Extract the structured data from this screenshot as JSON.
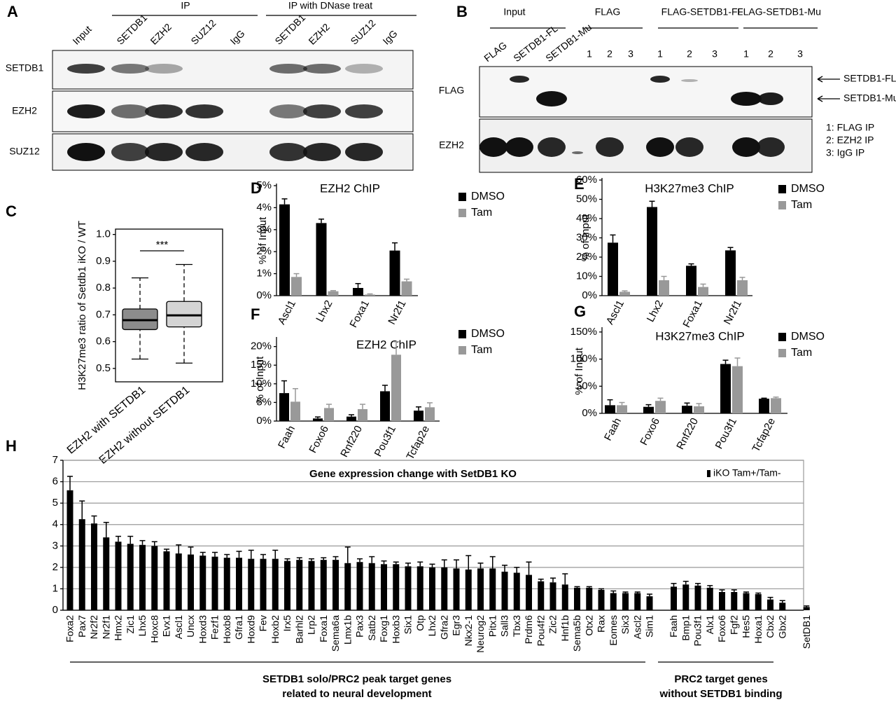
{
  "panel_labels": [
    "A",
    "B",
    "C",
    "D",
    "E",
    "F",
    "G",
    "H"
  ],
  "blot_a": {
    "groups": [
      "IP",
      "IP with DNase treat"
    ],
    "lanes": [
      "Input",
      "SETDB1",
      "EZH2",
      "SUZ12",
      "IgG",
      "SETDB1",
      "EZH2",
      "SUZ12",
      "IgG"
    ],
    "rows": [
      "SETDB1",
      "EZH2",
      "SUZ12"
    ]
  },
  "blot_b": {
    "groups": [
      "Input",
      "FLAG",
      "FLAG-SETDB1-FL",
      "FLAG-SETDB1-Mu"
    ],
    "lanes": [
      "FLAG",
      "SETDB1-FL",
      "SETDB1-Mu",
      "1",
      "2",
      "3",
      "1",
      "2",
      "3",
      "1",
      "2",
      "3"
    ],
    "rows": [
      "FLAG",
      "EZH2"
    ],
    "band_labels": [
      "SETDB1-FL",
      "SETDB1-Mu"
    ],
    "key": [
      "1: FLAG IP",
      "2: EZH2 IP",
      "3: IgG IP"
    ]
  },
  "chart_data": [
    {
      "type": "box",
      "y_label": "H3K27me3 ratio of Setdb1 iKO / WT",
      "categories": [
        "EZH2 with SETDB1",
        "EZH2 without SETDB1"
      ],
      "boxes": [
        {
          "color": "#8c8c8c",
          "low": 0.535,
          "q1": 0.645,
          "median": 0.68,
          "q3": 0.722,
          "high": 0.838
        },
        {
          "color": "#d4d4d4",
          "low": 0.52,
          "q1": 0.655,
          "median": 0.698,
          "q3": 0.75,
          "high": 0.888
        }
      ],
      "annotation": "***",
      "ylim": [
        0.45,
        1.02
      ],
      "yticks": [
        0.5,
        0.6,
        0.7,
        0.8,
        0.9,
        {
          "value": 1,
          "label": "1.0"
        }
      ]
    },
    {
      "type": "bar",
      "title": "EZH2 ChIP",
      "y_label": "% of Input",
      "categories": [
        "Ascl1",
        "Lhx2",
        "Foxa1",
        "Nr2f1"
      ],
      "series": [
        {
          "name": "DMSO",
          "color": "#000000",
          "values": [
            4.15,
            3.3,
            0.35,
            2.05
          ],
          "errors": [
            0.25,
            0.18,
            0.2,
            0.35
          ]
        },
        {
          "name": "Tam",
          "color": "#999999",
          "values": [
            0.85,
            0.2,
            0.05,
            0.65
          ],
          "errors": [
            0.15,
            0.03,
            0.03,
            0.1
          ]
        }
      ],
      "ylim": [
        0,
        5
      ],
      "yticks": [
        {
          "value": 0,
          "label": "0%"
        },
        {
          "value": 1,
          "label": "1%"
        },
        {
          "value": 2,
          "label": "2%"
        },
        {
          "value": 3,
          "label": "3%"
        },
        {
          "value": 4,
          "label": "4%"
        },
        {
          "value": 5,
          "label": "5%"
        }
      ]
    },
    {
      "type": "bar",
      "title": "H3K27me3 ChIP",
      "y_label": "% of Input",
      "categories": [
        "Ascl1",
        "Lhx2",
        "Foxa1",
        "Nr2f1"
      ],
      "series": [
        {
          "name": "DMSO",
          "color": "#000000",
          "values": [
            27.5,
            46,
            15.5,
            23.5
          ],
          "errors": [
            4,
            3,
            1,
            1.5
          ]
        },
        {
          "name": "Tam",
          "color": "#999999",
          "values": [
            2,
            8,
            4.5,
            8
          ],
          "errors": [
            0.5,
            2,
            1.5,
            1.5
          ]
        }
      ],
      "ylim": [
        0,
        60
      ],
      "yticks": [
        {
          "value": 0,
          "label": "0%"
        },
        {
          "value": 10,
          "label": "10%"
        },
        {
          "value": 20,
          "label": "20%"
        },
        {
          "value": 30,
          "label": "30%"
        },
        {
          "value": 40,
          "label": "40%"
        },
        {
          "value": 50,
          "label": "50%"
        },
        {
          "value": 60,
          "label": "60%"
        }
      ]
    },
    {
      "type": "bar",
      "title": "EZH2 ChIP",
      "y_label": "% of Input",
      "categories": [
        "Faah",
        "Foxo6",
        "Rnf220",
        "Pou3f1",
        "Tcfap2e"
      ],
      "series": [
        {
          "name": "DMSO",
          "color": "#000000",
          "values": [
            7.5,
            0.7,
            1.2,
            8,
            2.8
          ],
          "errors": [
            3.3,
            0.4,
            0.5,
            1.6,
            1
          ]
        },
        {
          "name": "Tam",
          "color": "#999999",
          "values": [
            5.2,
            3.5,
            3.2,
            17.8,
            3.7
          ],
          "errors": [
            3.5,
            1,
            1.3,
            3.5,
            1.2
          ]
        }
      ],
      "ylim": [
        0,
        22
      ],
      "yticks": [
        {
          "value": 0,
          "label": "0%"
        },
        {
          "value": 5,
          "label": "5%"
        },
        {
          "value": 10,
          "label": "10%"
        },
        {
          "value": 15,
          "label": "15%"
        },
        {
          "value": 20,
          "label": "20%"
        }
      ]
    },
    {
      "type": "bar",
      "title": "H3K27me3 ChIP",
      "y_label": "% of Input",
      "categories": [
        "Faah",
        "Foxo6",
        "Rnf220",
        "Pou3f1",
        "Tcfap2e"
      ],
      "series": [
        {
          "name": "DMSO",
          "color": "#000000",
          "values": [
            15,
            12,
            14,
            91,
            27
          ],
          "errors": [
            10,
            4,
            5,
            7,
            1
          ]
        },
        {
          "name": "Tam",
          "color": "#999999",
          "values": [
            15,
            23,
            13,
            87,
            28
          ],
          "errors": [
            5,
            5,
            5,
            15,
            2
          ]
        }
      ],
      "ylim": [
        0,
        155
      ],
      "yticks": [
        {
          "value": 0,
          "label": "0%"
        },
        {
          "value": 50,
          "label": "50%"
        },
        {
          "value": 100,
          "label": "100%"
        },
        {
          "value": 150,
          "label": "150%"
        }
      ]
    },
    {
      "type": "bar",
      "title": "Gene expression change with SetDB1 KO",
      "grid": true,
      "categories": [
        "Foxa2",
        "Pax7",
        "Nr2f2",
        "Nr2f1",
        "Hmx2",
        "Zic1",
        "Lhx5",
        "Hoxc8",
        "Evx1",
        "Ascl1",
        "Uncx",
        "Hoxd3",
        "Fezf1",
        "Hoxb8",
        "Gfra1",
        "Hoxd9",
        "Fev",
        "Hoxb2",
        "Irx5",
        "Barhl2",
        "Lrp2",
        "Foxa1",
        "Sema6a",
        "Lmx1b",
        "Pax3",
        "Satb2",
        "Foxg1",
        "Hoxb3",
        "Six1",
        "Otp",
        "Lhx2",
        "Gfra2",
        "Egr3",
        "Nkx2-1",
        "Neurog2",
        "Pitx1",
        "Sall3",
        "Tbx3",
        "Prdm6",
        "Pou4f2",
        "Zic2",
        "Hnf1b",
        "Sema5b",
        "Otx2",
        "Rax",
        "Eomes",
        "Six3",
        "Ascl2",
        "Sim1",
        null,
        "Faah",
        "Bmp1",
        "Pou3f1",
        "Alx1",
        "Foxo6",
        "Fgf2",
        "Hes5",
        "Hoxa1",
        "Cbx2",
        "Gbx2",
        null,
        "SetDB1"
      ],
      "series": [
        {
          "name": "iKO Tam+/Tam-",
          "color": "#000000",
          "values": [
            5.6,
            4.25,
            4.05,
            3.4,
            3.2,
            3.1,
            3.05,
            3.0,
            2.75,
            2.65,
            2.6,
            2.55,
            2.5,
            2.45,
            2.45,
            2.4,
            2.4,
            2.4,
            2.3,
            2.35,
            2.3,
            2.35,
            2.35,
            2.2,
            2.25,
            2.2,
            2.15,
            2.15,
            2.05,
            2.05,
            2.0,
            2.0,
            1.95,
            1.9,
            1.95,
            1.95,
            1.8,
            1.75,
            1.65,
            1.35,
            1.3,
            1.2,
            1.05,
            1.05,
            0.95,
            0.8,
            0.8,
            0.8,
            0.65,
            null,
            1.1,
            1.2,
            1.15,
            1.05,
            0.85,
            0.85,
            0.8,
            0.75,
            0.5,
            0.35,
            null,
            0.15
          ],
          "errors": [
            0.65,
            0.85,
            0.35,
            0.7,
            0.25,
            0.35,
            0.2,
            0.2,
            0.1,
            0.4,
            0.35,
            0.15,
            0.2,
            0.15,
            0.3,
            0.4,
            0.2,
            0.4,
            0.1,
            0.1,
            0.1,
            0.1,
            0.15,
            0.75,
            0.15,
            0.3,
            0.15,
            0.1,
            0.15,
            0.2,
            0.15,
            0.35,
            0.4,
            0.65,
            0.25,
            0.55,
            0.3,
            0.25,
            0.6,
            0.1,
            0.2,
            0.5,
            0.05,
            0.05,
            0.05,
            0.1,
            0.05,
            0.05,
            0.1,
            null,
            0.15,
            0.15,
            0.1,
            0.1,
            0.1,
            0.1,
            0.05,
            0.05,
            0.1,
            0.1,
            null,
            0.05
          ]
        }
      ],
      "group_labels": [
        [
          "SETDB1 solo/PRC2 peak target genes",
          "related to neural development"
        ],
        [
          "PRC2 target genes",
          "without SETDB1 binding"
        ]
      ],
      "ylim": [
        0,
        7
      ],
      "yticks": [
        0,
        1,
        2,
        3,
        4,
        5,
        6,
        7
      ]
    }
  ]
}
